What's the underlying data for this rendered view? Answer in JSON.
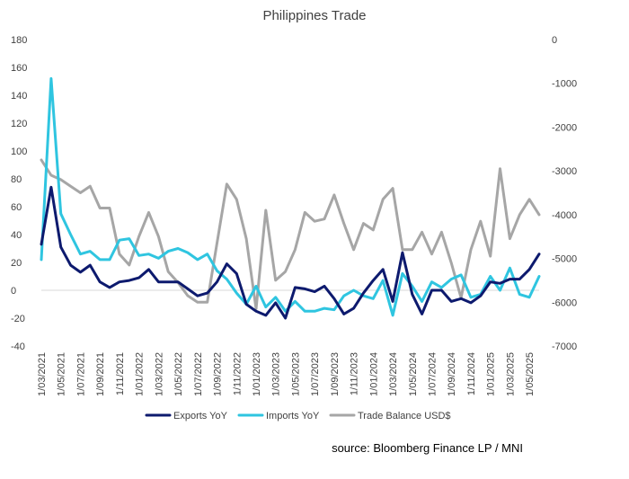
{
  "chart_data": {
    "type": "line",
    "title": "Philippines Trade",
    "x": [
      "1/03/2021",
      "1/04/2021",
      "1/05/2021",
      "1/06/2021",
      "1/07/2021",
      "1/08/2021",
      "1/09/2021",
      "1/10/2021",
      "1/11/2021",
      "1/12/2021",
      "1/01/2022",
      "1/02/2022",
      "1/03/2022",
      "1/04/2022",
      "1/05/2022",
      "1/06/2022",
      "1/07/2022",
      "1/08/2022",
      "1/09/2022",
      "1/10/2022",
      "1/11/2022",
      "1/12/2022",
      "1/01/2023",
      "1/02/2023",
      "1/03/2023",
      "1/04/2023",
      "1/05/2023",
      "1/06/2023",
      "1/07/2023",
      "1/08/2023",
      "1/09/2023",
      "1/10/2023",
      "1/11/2023",
      "1/12/2023",
      "1/01/2024",
      "1/02/2024",
      "1/03/2024",
      "1/04/2024",
      "1/05/2024",
      "1/06/2024",
      "1/07/2024",
      "1/08/2024",
      "1/09/2024",
      "1/10/2024",
      "1/11/2024",
      "1/12/2024",
      "1/01/2025",
      "1/02/2025",
      "1/03/2025",
      "1/04/2025",
      "1/05/2025",
      "1/06/2025"
    ],
    "x_tick_labels": [
      "1/03/2021",
      "1/05/2021",
      "1/07/2021",
      "1/09/2021",
      "1/11/2021",
      "1/01/2022",
      "1/03/2022",
      "1/05/2022",
      "1/07/2022",
      "1/09/2022",
      "1/11/2022",
      "1/01/2023",
      "1/03/2023",
      "1/05/2023",
      "1/07/2023",
      "1/09/2023",
      "1/11/2023",
      "1/01/2024",
      "1/03/2024",
      "1/05/2024",
      "1/07/2024",
      "1/09/2024",
      "1/11/2024",
      "1/01/2025",
      "1/03/2025",
      "1/05/2025"
    ],
    "left_axis": {
      "ylim": [
        -40,
        180
      ],
      "ticks": [
        180,
        160,
        140,
        120,
        100,
        80,
        60,
        40,
        20,
        0,
        -20,
        -40
      ]
    },
    "right_axis": {
      "ylim": [
        -7000,
        0
      ],
      "ticks": [
        0,
        -1000,
        -2000,
        -3000,
        -4000,
        -5000,
        -6000,
        -7000
      ]
    },
    "series": [
      {
        "name": "Exports YoY",
        "axis": "left",
        "color": "#0d1a6e",
        "values": [
          33,
          74,
          31,
          18,
          13,
          18,
          6,
          2,
          6,
          7,
          9,
          15,
          6,
          6,
          6,
          1,
          -4,
          -2,
          6,
          19,
          12,
          -10,
          -15,
          -18,
          -9,
          -20,
          2,
          1,
          -1,
          3,
          -6,
          -17,
          -13,
          -2,
          7,
          15,
          -8,
          27,
          -3,
          -17,
          0,
          0,
          -8,
          -6,
          -9,
          -4,
          6,
          5,
          8,
          8,
          15,
          26
        ]
      },
      {
        "name": "Imports YoY",
        "axis": "left",
        "color": "#2fc5e0",
        "values": [
          22,
          152,
          55,
          40,
          26,
          28,
          22,
          22,
          36,
          37,
          25,
          26,
          23,
          28,
          30,
          27,
          22,
          26,
          14,
          8,
          -2,
          -10,
          3,
          -12,
          -5,
          -15,
          -8,
          -15,
          -15,
          -13,
          -14,
          -4,
          0,
          -4,
          -6,
          7,
          -18,
          12,
          3,
          -8,
          6,
          2,
          8,
          11,
          -5,
          -3,
          10,
          0,
          16,
          -3,
          -5,
          10
        ]
      },
      {
        "name": "Trade Balance USD$",
        "axis": "right",
        "color": "#a6a6a6",
        "values": [
          -2750,
          -3100,
          -3200,
          -3350,
          -3500,
          -3350,
          -3850,
          -3850,
          -4900,
          -5150,
          -4500,
          -3950,
          -4500,
          -5300,
          -5550,
          -5850,
          -6000,
          -6000,
          -4650,
          -3300,
          -3650,
          -4550,
          -6150,
          -3900,
          -5500,
          -5300,
          -4800,
          -3950,
          -4150,
          -4100,
          -3550,
          -4200,
          -4800,
          -4200,
          -4350,
          -3650,
          -3400,
          -4800,
          -4800,
          -4400,
          -4900,
          -4400,
          -5100,
          -5900,
          -4800,
          -4150,
          -4950,
          -2950,
          -4550,
          -4000,
          -3650,
          -4000
        ]
      }
    ],
    "legend_position": "bottom",
    "grid": false
  },
  "source": "source: Bloomberg Finance LP / MNI"
}
